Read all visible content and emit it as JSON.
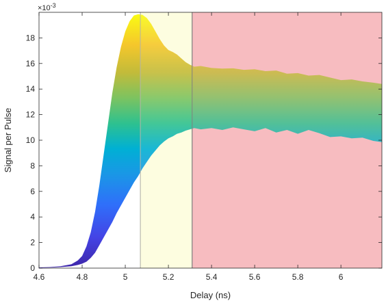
{
  "chart_data": {
    "type": "area",
    "title": "",
    "xlabel": "Delay (ns)",
    "ylabel": "Signal per Pulse",
    "y_multiplier_label": "×10",
    "y_multiplier_exponent": "-3",
    "xlim": [
      4.6,
      6.19
    ],
    "ylim": [
      0,
      20
    ],
    "y_scale_factor": 0.001,
    "x_ticks": [
      4.6,
      4.8,
      5,
      5.2,
      5.4,
      5.6,
      5.8,
      6
    ],
    "x_tick_labels": [
      "4.6",
      "4.8",
      "5",
      "5.2",
      "5.4",
      "5.6",
      "5.8",
      "6"
    ],
    "y_ticks": [
      0,
      2,
      4,
      6,
      8,
      10,
      12,
      14,
      16,
      18
    ],
    "y_tick_labels": [
      "0",
      "2",
      "4",
      "6",
      "8",
      "10",
      "12",
      "14",
      "16",
      "18"
    ],
    "grid": false,
    "colormap": "parula",
    "regions": [
      {
        "name": "yellow-band",
        "x_start": 5.07,
        "x_end": 5.31,
        "color": "#fdfde0",
        "edge": "#b5b5a8"
      },
      {
        "name": "red-band",
        "x_start": 5.31,
        "x_end": 6.19,
        "color": "#f7bcc0",
        "edge": "#7a7a7a"
      }
    ],
    "series": [
      {
        "x": [
          4.6,
          4.65,
          4.7,
          4.75,
          4.78,
          4.8,
          4.82,
          4.84,
          4.86,
          4.88,
          4.9,
          4.92,
          4.94,
          4.96,
          4.98,
          5.0,
          5.02,
          5.04,
          5.06,
          5.08,
          5.1,
          5.12,
          5.14,
          5.16,
          5.18,
          5.2,
          5.22,
          5.24,
          5.26,
          5.28,
          5.3,
          5.32,
          5.35,
          5.4,
          5.45,
          5.5,
          5.55,
          5.6,
          5.65,
          5.7,
          5.75,
          5.8,
          5.85,
          5.9,
          5.95,
          6.0,
          6.05,
          6.1,
          6.15,
          6.19
        ],
        "upper": [
          0.05,
          0.08,
          0.15,
          0.3,
          0.6,
          0.95,
          1.7,
          2.8,
          4.4,
          6.5,
          8.9,
          11.3,
          13.7,
          15.7,
          17.3,
          18.5,
          19.3,
          19.75,
          19.85,
          19.8,
          19.55,
          19.1,
          18.5,
          17.9,
          17.4,
          17.05,
          16.9,
          16.7,
          16.4,
          16.1,
          15.9,
          15.75,
          15.8,
          15.65,
          15.6,
          15.62,
          15.5,
          15.55,
          15.4,
          15.45,
          15.2,
          15.25,
          15.05,
          15.1,
          14.9,
          14.7,
          14.75,
          14.6,
          14.5,
          14.4
        ],
        "lower": [
          0.02,
          0.04,
          0.08,
          0.15,
          0.25,
          0.35,
          0.5,
          0.8,
          1.2,
          1.8,
          2.4,
          3.0,
          3.6,
          4.3,
          4.9,
          5.5,
          6.1,
          6.7,
          7.2,
          7.8,
          8.3,
          8.8,
          9.2,
          9.6,
          9.9,
          10.15,
          10.3,
          10.5,
          10.6,
          10.75,
          10.85,
          10.95,
          10.85,
          10.95,
          10.8,
          11.0,
          10.85,
          10.7,
          10.95,
          10.6,
          10.8,
          10.5,
          10.8,
          10.55,
          10.25,
          10.3,
          10.15,
          10.2,
          9.95,
          9.85
        ]
      }
    ]
  }
}
